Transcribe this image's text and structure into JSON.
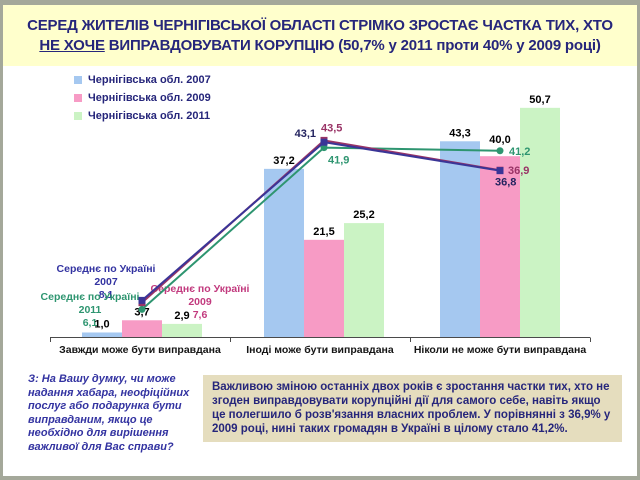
{
  "frame": {
    "border_color": "#A4A89A",
    "slide_bg": "#FFFFFF"
  },
  "title": {
    "line1": "СЕРЕД ЖИТЕЛІВ ЧЕРНІГІВСЬКОЇ ОБЛАСТІ СТРІМКО ЗРОСТАЄ ЧАСТКА ТИХ, ХТО",
    "underlined": "НЕ ХОЧЕ",
    "line2_rest": " ВИПРАВДОВУВАТИ КОРУПЦІЮ (50,7% у 2011 проти 40% у 2009 році)",
    "bg": "#FFFFCC",
    "color": "#26267B"
  },
  "chart_data": {
    "type": "bar+line",
    "categories": [
      "Завжди може бути виправдана",
      "Іноді може бути виправдана",
      "Ніколи не може бути виправдана"
    ],
    "bar_series": [
      {
        "name": "Чернігівська обл. 2007",
        "color": "#A5C8F0",
        "values": [
          1.0,
          37.2,
          43.3
        ]
      },
      {
        "name": "Чернігівська обл. 2009",
        "color": "#F79BC5",
        "values": [
          3.7,
          21.5,
          40.0
        ]
      },
      {
        "name": "Чернігівська обл. 2011",
        "color": "#CBF3C4",
        "values": [
          2.9,
          25.2,
          50.7
        ]
      }
    ],
    "line_series": [
      {
        "name": "Середнє по Україні 2007",
        "color": "#3A3597",
        "label_color": "#23235F",
        "marker": "square",
        "values": [
          8.1,
          43.1,
          36.8
        ]
      },
      {
        "name": "Середнє по Україні 2009",
        "color": "#993366",
        "label_color": "#993366",
        "marker": "square",
        "values": [
          7.6,
          43.5,
          36.9
        ]
      },
      {
        "name": "Середнє по Україні 2011",
        "color": "#2E9570",
        "label_color": "#2E9570",
        "marker": "circle",
        "values": [
          6.1,
          41.9,
          41.2
        ]
      }
    ],
    "ylim": [
      0,
      55
    ],
    "grid": false,
    "y_axis_shown": false,
    "legend_position": "top-left"
  },
  "annotations": {
    "avg2007": {
      "line1": "Середнє по Україні",
      "year": "2007",
      "value": "8,1",
      "color": "#3333A1"
    },
    "avg2009": {
      "line1": "Середнє по Україні",
      "year": "2009",
      "value": "7,6",
      "color": "#C23A7E"
    },
    "avg2011": {
      "line1": "Середнє по Україні",
      "year": "2011",
      "value": "6,1",
      "color": "#2E9570"
    }
  },
  "question": {
    "text": "З: На Вашу думку, чи може надання хабара, неофіційних послуг або подарунка бути виправданим, якщо це необхідно для вирішення важливої для Вас справи?",
    "color": "#3333A1"
  },
  "note_box": {
    "text": "Важливою зміною останніх двох років є зростання частки тих, хто не згоден виправдовувати корупційні дії для самого себе, навіть якщо це полегшило б розв'язання власних проблем. У порівнянні з 36,9% у 2009 році, нині таких громадян в Україні в цілому стало 41,2%.",
    "bg": "#E5DDBE",
    "color": "#26267B"
  }
}
